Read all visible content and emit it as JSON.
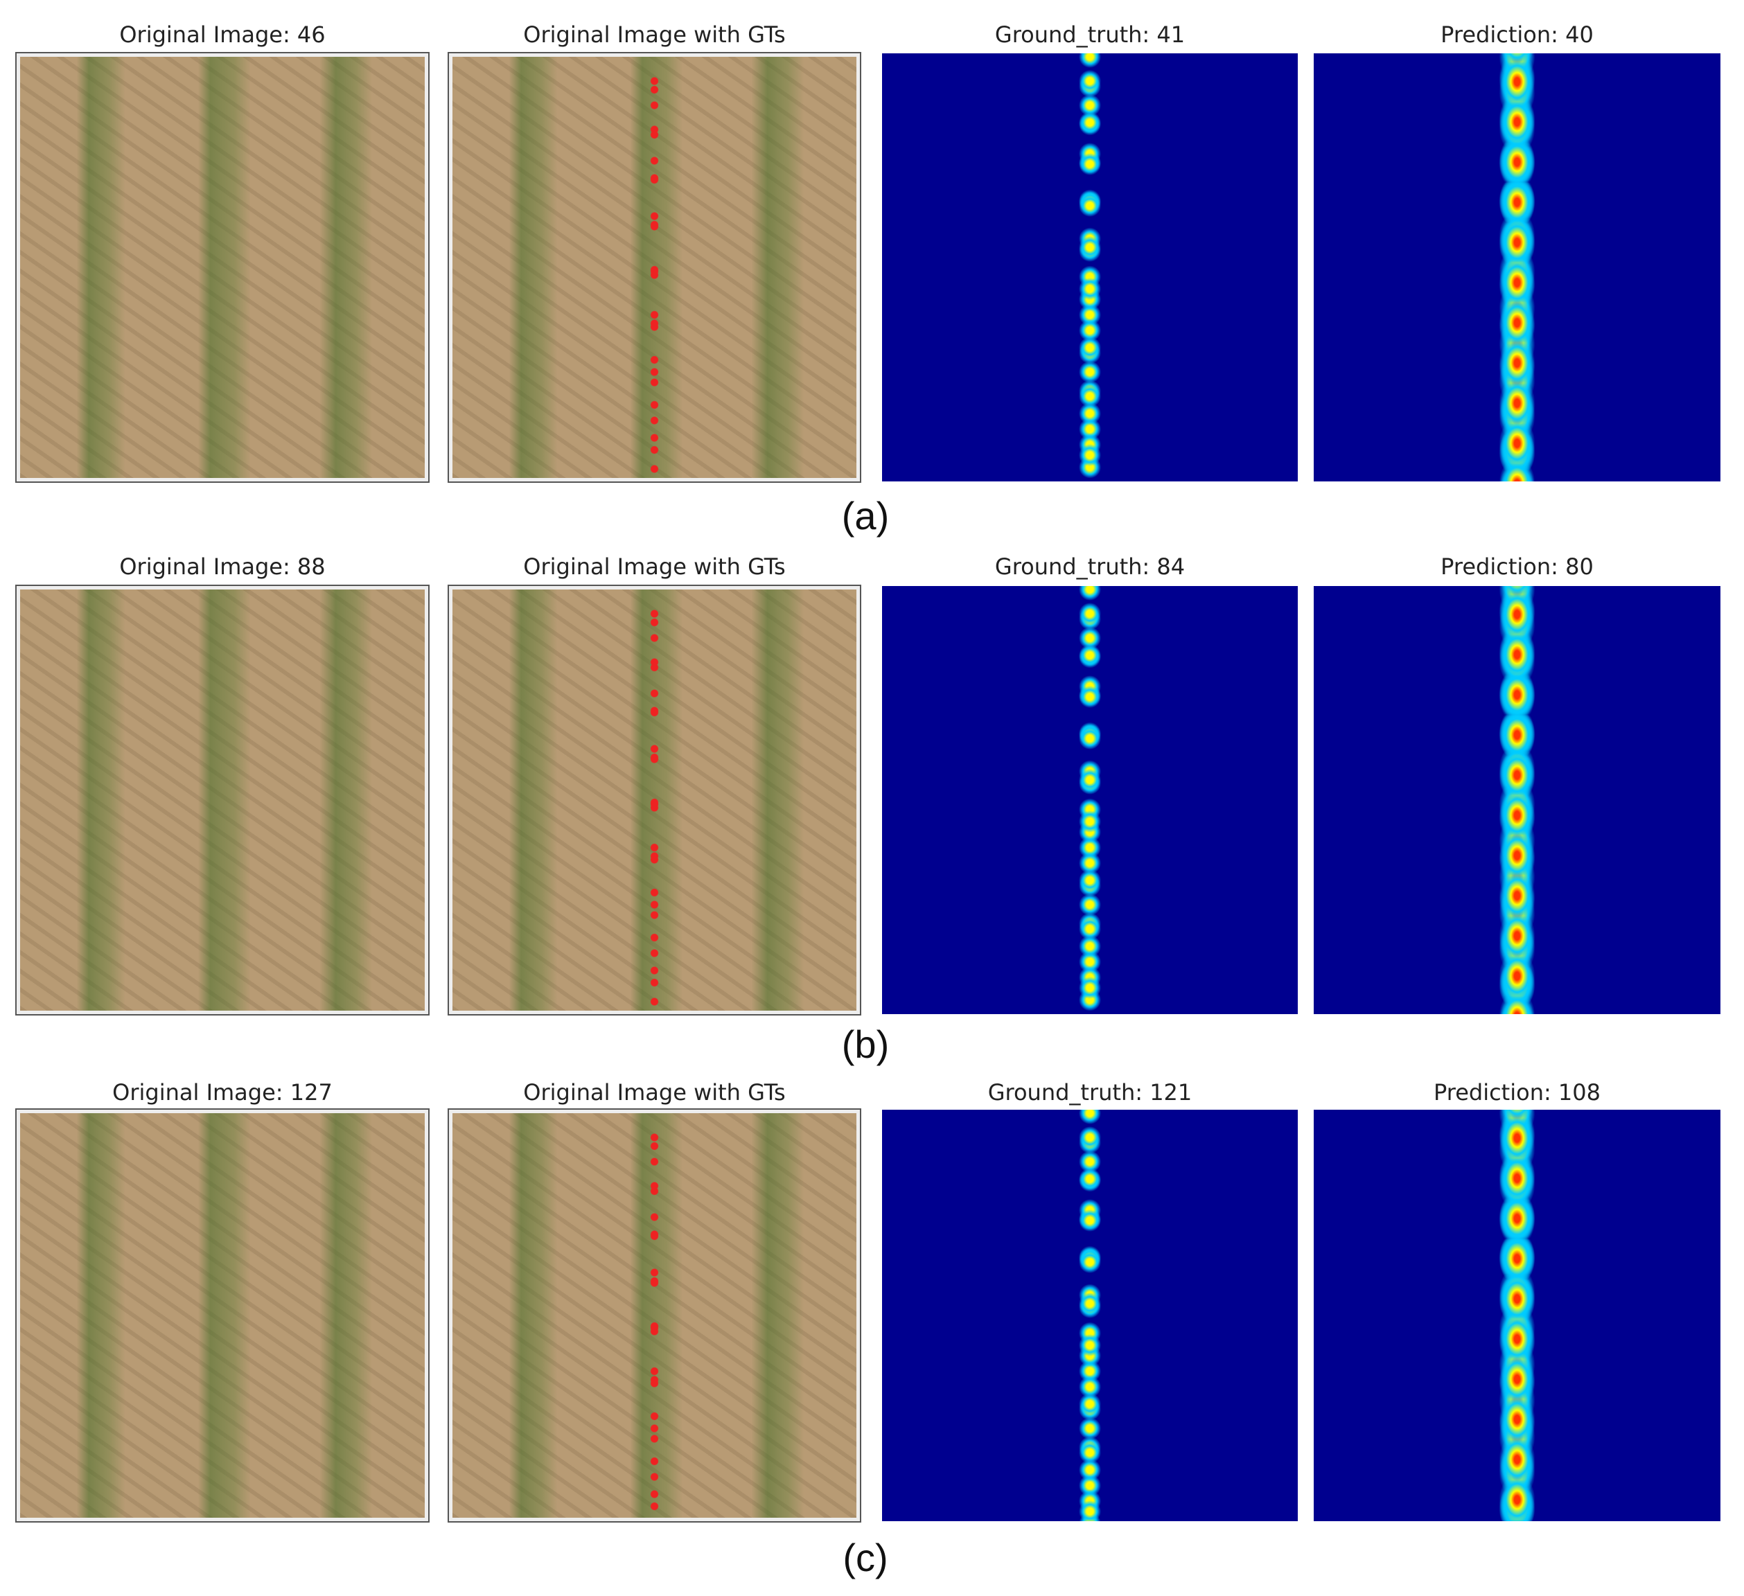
{
  "rows": [
    {
      "label": "(a)",
      "panels": [
        {
          "title": "Original Image: 46"
        },
        {
          "title": "Original Image with GTs"
        },
        {
          "title": "Ground_truth: 41"
        },
        {
          "title": "Prediction: 40"
        }
      ]
    },
    {
      "label": "(b)",
      "panels": [
        {
          "title": "Original Image: 88"
        },
        {
          "title": "Original Image with GTs"
        },
        {
          "title": "Ground_truth: 84"
        },
        {
          "title": "Prediction: 80"
        }
      ]
    },
    {
      "label": "(c)",
      "panels": [
        {
          "title": "Original Image: 127"
        },
        {
          "title": "Original Image with GTs"
        },
        {
          "title": "Ground_truth: 121"
        },
        {
          "title": "Prediction: 108"
        }
      ]
    }
  ]
}
